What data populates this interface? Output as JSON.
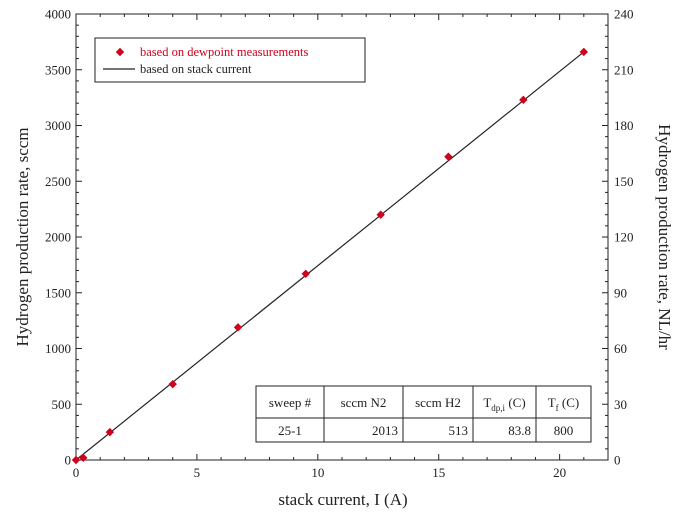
{
  "chart_data": {
    "type": "scatter",
    "xlabel": "stack current, I (A)",
    "ylabel": "Hydrogen production rate, sccm",
    "y2label": "Hydrogen production rate, NL/hr",
    "xlim": [
      0,
      22
    ],
    "ylim": [
      0,
      4000
    ],
    "y2lim": [
      0,
      240
    ],
    "x_ticks": [
      0,
      5,
      10,
      15,
      20
    ],
    "y_ticks": [
      0,
      500,
      1000,
      1500,
      2000,
      2500,
      3000,
      3500,
      4000
    ],
    "y2_ticks": [
      0,
      30,
      60,
      90,
      120,
      150,
      180,
      210,
      240
    ],
    "grid": false,
    "legend_position": "top-left",
    "series": [
      {
        "name": "based on dewpoint measurements",
        "kind": "markers",
        "marker": "diamond",
        "color": "#d0021b",
        "x": [
          0,
          0.3,
          1.4,
          4.0,
          6.7,
          9.5,
          12.6,
          15.4,
          18.5,
          21.0
        ],
        "y": [
          0,
          20,
          250,
          680,
          1190,
          1670,
          2200,
          2720,
          3230,
          3660
        ]
      },
      {
        "name": "based on stack current",
        "kind": "line",
        "color": "#222222",
        "x": [
          0,
          21.0
        ],
        "y": [
          0,
          3660
        ]
      }
    ],
    "inset_table": {
      "headers": [
        {
          "main": "sweep #",
          "sub": ""
        },
        {
          "main": "sccm N2",
          "sub": ""
        },
        {
          "main": "sccm H2",
          "sub": ""
        },
        {
          "main": "T",
          "sub": "dp,i",
          "suffix": " (C)"
        },
        {
          "main": "T",
          "sub": "f",
          "suffix": " (C)"
        }
      ],
      "rows": [
        [
          "25-1",
          "2013",
          "513",
          "83.8",
          "800"
        ]
      ]
    }
  }
}
